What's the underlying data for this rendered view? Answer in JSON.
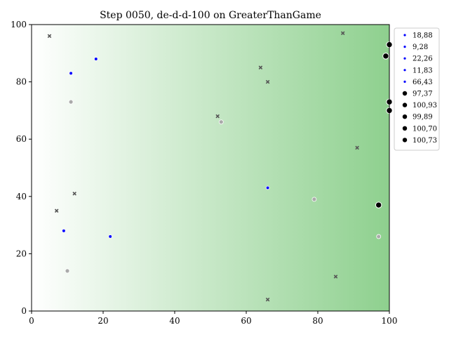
{
  "chart_data": {
    "type": "scatter",
    "title": "Step 0050, de-d-d-100 on GreaterThanGame",
    "xlabel": "",
    "ylabel": "",
    "xlim": [
      0,
      100
    ],
    "ylim": [
      0,
      100
    ],
    "xticks": [
      0,
      20,
      40,
      60,
      80,
      100
    ],
    "yticks": [
      0,
      20,
      40,
      60,
      80,
      100
    ],
    "grid": false,
    "background": "horizontal gradient white to green",
    "background_colors": [
      "#ffffff",
      "#8ed08e"
    ],
    "legend_placement": "top-right outside",
    "legend": [
      {
        "label": "18,88",
        "kind": "blue-small",
        "color": "#0000ff"
      },
      {
        "label": "9,28",
        "kind": "blue-small",
        "color": "#0000ff"
      },
      {
        "label": "22,26",
        "kind": "blue-small",
        "color": "#0000ff"
      },
      {
        "label": "11,83",
        "kind": "blue-small",
        "color": "#0000ff"
      },
      {
        "label": "66,43",
        "kind": "blue-small",
        "color": "#0000ff"
      },
      {
        "label": "97,37",
        "kind": "black-large",
        "color": "#000000"
      },
      {
        "label": "100,93",
        "kind": "black-large",
        "color": "#000000"
      },
      {
        "label": "99,89",
        "kind": "black-large",
        "color": "#000000"
      },
      {
        "label": "100,70",
        "kind": "black-large",
        "color": "#000000"
      },
      {
        "label": "100,73",
        "kind": "black-large",
        "color": "#000000"
      }
    ],
    "series": [
      {
        "kind": "blue-small",
        "color": "#0000ff",
        "points": [
          [
            18,
            88
          ],
          [
            9,
            28
          ],
          [
            22,
            26
          ],
          [
            11,
            83
          ],
          [
            66,
            43
          ]
        ]
      },
      {
        "kind": "black-large",
        "color": "#000000",
        "points": [
          [
            97,
            37
          ],
          [
            100,
            93
          ],
          [
            99,
            89
          ],
          [
            100,
            70
          ],
          [
            100,
            73
          ]
        ]
      },
      {
        "kind": "gray-x",
        "color": "#555555",
        "points": [
          [
            5,
            96
          ],
          [
            87,
            97
          ],
          [
            64,
            85
          ],
          [
            66,
            80
          ],
          [
            52,
            68
          ],
          [
            91,
            57
          ],
          [
            12,
            41
          ],
          [
            7,
            35
          ],
          [
            85,
            12
          ],
          [
            66,
            4
          ]
        ]
      },
      {
        "kind": "gray-circle",
        "color": "#aaaaaa",
        "points": [
          [
            11,
            73
          ],
          [
            53,
            66
          ],
          [
            79,
            39
          ],
          [
            97,
            26
          ],
          [
            10,
            14
          ]
        ]
      }
    ]
  }
}
